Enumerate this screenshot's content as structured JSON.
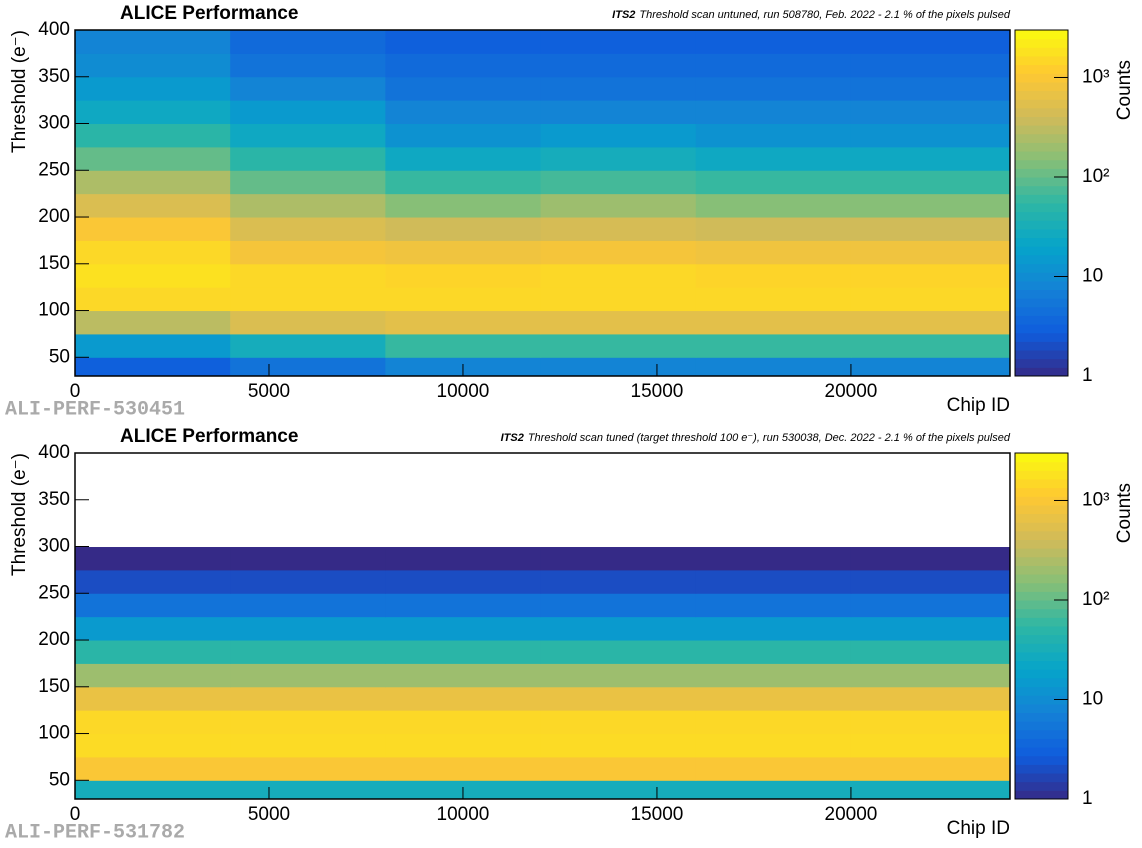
{
  "chart_data": [
    {
      "type": "heatmap",
      "title": "ALICE Performance",
      "subtitle_tag": "ITS2",
      "subtitle": "Threshold scan untuned, run 508780, Feb. 2022 - 2.1 % of the pixels pulsed",
      "xlabel": "Chip ID",
      "ylabel": "Threshold (e⁻)",
      "zlabel": "Counts",
      "watermark": "ALI-PERF-530451",
      "xlim": [
        0,
        24100
      ],
      "ylim": [
        30,
        400
      ],
      "zlim": [
        1,
        3000
      ],
      "zlog": true,
      "xticks": [
        0,
        5000,
        10000,
        15000,
        20000
      ],
      "yticks": [
        50,
        100,
        150,
        200,
        250,
        300,
        350,
        400
      ],
      "zticks": [
        1,
        10,
        {
          "value": 100,
          "label": "10²"
        },
        {
          "value": 1000,
          "label": "10³"
        }
      ],
      "colormap": [
        "#352a87",
        "#0f5cdd",
        "#1481d6",
        "#06a4ca",
        "#2eb7a4",
        "#87bf77",
        "#d1bb59",
        "#fec832",
        "#f9fb0e"
      ],
      "x_edges": [
        0,
        4000,
        8000,
        12000,
        16000,
        20000,
        24100
      ],
      "y_edges": [
        30,
        50,
        75,
        100,
        125,
        150,
        175,
        200,
        225,
        250,
        275,
        300,
        325,
        350,
        375,
        400
      ],
      "values": [
        [
          3,
          5,
          8,
          8,
          8,
          8
        ],
        [
          15,
          30,
          60,
          60,
          60,
          60
        ],
        [
          300,
          500,
          600,
          600,
          600,
          600
        ],
        [
          1500,
          1500,
          1500,
          1500,
          1500,
          1500
        ],
        [
          1800,
          1500,
          1400,
          1500,
          1400,
          1400
        ],
        [
          1500,
          900,
          800,
          900,
          800,
          800
        ],
        [
          1000,
          500,
          400,
          450,
          400,
          400
        ],
        [
          500,
          250,
          150,
          200,
          150,
          150
        ],
        [
          250,
          100,
          60,
          70,
          60,
          60
        ],
        [
          100,
          50,
          25,
          30,
          25,
          25
        ],
        [
          50,
          25,
          12,
          15,
          12,
          12
        ],
        [
          25,
          15,
          8,
          8,
          8,
          8
        ],
        [
          15,
          8,
          5,
          5,
          5,
          5
        ],
        [
          10,
          5,
          4,
          4,
          4,
          4
        ],
        [
          8,
          4,
          3,
          3,
          3,
          3
        ]
      ]
    },
    {
      "type": "heatmap",
      "title": "ALICE Performance",
      "subtitle_tag": "ITS2",
      "subtitle": "Threshold scan tuned (target threshold 100 e⁻), run 530038, Dec. 2022 - 2.1 % of the pixels pulsed",
      "xlabel": "Chip ID",
      "ylabel": "Threshold (e⁻)",
      "zlabel": "Counts",
      "watermark": "ALI-PERF-531782",
      "xlim": [
        0,
        24100
      ],
      "ylim": [
        30,
        400
      ],
      "zlim": [
        1,
        3000
      ],
      "zlog": true,
      "xticks": [
        0,
        5000,
        10000,
        15000,
        20000
      ],
      "yticks": [
        50,
        100,
        150,
        200,
        250,
        300,
        350,
        400
      ],
      "zticks": [
        1,
        10,
        {
          "value": 100,
          "label": "10²"
        },
        {
          "value": 1000,
          "label": "10³"
        }
      ],
      "colormap": [
        "#352a87",
        "#0f5cdd",
        "#1481d6",
        "#06a4ca",
        "#2eb7a4",
        "#87bf77",
        "#d1bb59",
        "#fec832",
        "#f9fb0e"
      ],
      "x_edges": [
        0,
        4000,
        8000,
        12000,
        16000,
        20000,
        24100
      ],
      "y_edges": [
        30,
        50,
        75,
        100,
        125,
        150,
        175,
        200,
        225,
        250,
        275,
        300,
        325,
        350,
        375,
        400
      ],
      "values": [
        [
          30,
          30,
          30,
          30,
          30,
          30
        ],
        [
          1000,
          1000,
          1000,
          1000,
          1000,
          1000
        ],
        [
          1600,
          1600,
          1600,
          1600,
          1600,
          1600
        ],
        [
          1500,
          1500,
          1500,
          1500,
          1500,
          1500
        ],
        [
          700,
          700,
          700,
          700,
          700,
          700
        ],
        [
          200,
          200,
          200,
          200,
          200,
          200
        ],
        [
          50,
          50,
          50,
          50,
          50,
          50
        ],
        [
          15,
          15,
          15,
          15,
          15,
          15
        ],
        [
          5,
          5,
          5,
          5,
          5,
          5
        ],
        [
          2,
          2,
          2,
          2,
          2,
          2
        ],
        [
          1,
          1,
          1,
          1,
          1,
          1
        ],
        [
          0,
          0,
          0,
          0,
          0,
          0
        ],
        [
          0,
          0,
          0,
          0,
          0,
          0
        ],
        [
          0,
          0,
          0,
          0,
          0,
          0
        ],
        [
          0,
          0,
          0,
          0,
          0,
          0
        ]
      ]
    }
  ]
}
